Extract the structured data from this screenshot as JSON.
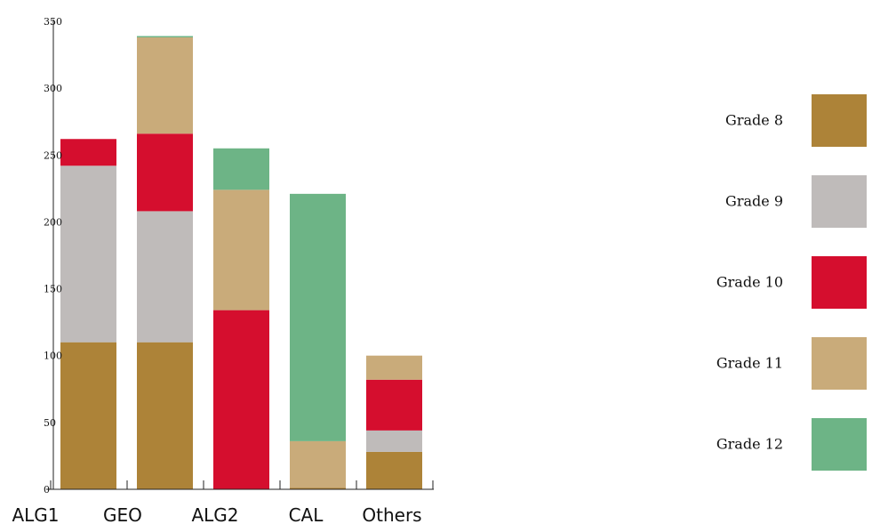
{
  "chart_data": {
    "type": "bar",
    "stacked": true,
    "categories": [
      "ALG1",
      "GEO",
      "ALG2",
      "CAL",
      "Others"
    ],
    "series": [
      {
        "name": "Grade 8",
        "color": "#AD8338",
        "values": [
          110,
          110,
          0,
          1,
          28
        ]
      },
      {
        "name": "Grade 9",
        "color": "#BFBBBA",
        "values": [
          132,
          98,
          0,
          0,
          16
        ]
      },
      {
        "name": "Grade 10",
        "color": "#D50E2E",
        "values": [
          20,
          58,
          134,
          0,
          38
        ]
      },
      {
        "name": "Grade 11",
        "color": "#C9AB7A",
        "values": [
          0,
          72,
          90,
          35,
          18
        ]
      },
      {
        "name": "Grade 12",
        "color": "#6DB486",
        "values": [
          0,
          1,
          31,
          185,
          0
        ]
      }
    ],
    "ylim": [
      0,
      350
    ],
    "yticks": [
      "0",
      "50",
      "100",
      "150",
      "200",
      "250",
      "300",
      "350"
    ],
    "legend_position": "right",
    "grid": false
  }
}
